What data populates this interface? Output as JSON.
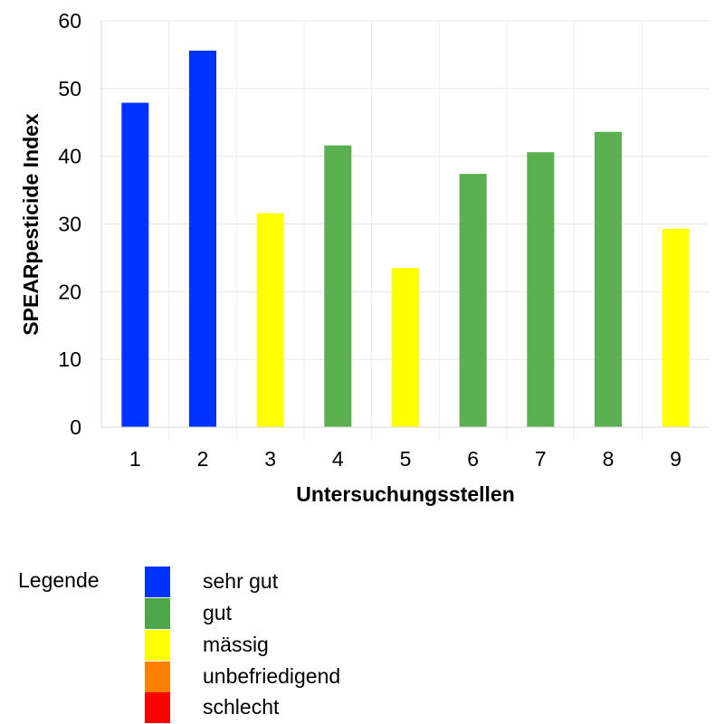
{
  "chart_data": {
    "type": "bar",
    "categories": [
      "1",
      "2",
      "3",
      "4",
      "5",
      "6",
      "7",
      "8",
      "9"
    ],
    "values": [
      47.9,
      55.6,
      31.6,
      41.6,
      23.5,
      37.4,
      40.6,
      43.6,
      29.3
    ],
    "bar_classes": [
      "sehr gut",
      "sehr gut",
      "mässig",
      "gut",
      "mässig",
      "gut",
      "gut",
      "gut",
      "mässig"
    ],
    "title": "",
    "xlabel": "Untersuchungsstellen",
    "ylabel": "SPEARpesticide Index",
    "ylim": [
      0,
      60
    ],
    "yticks": [
      0,
      10,
      20,
      30,
      40,
      50,
      60
    ],
    "grid": true,
    "legend_position": "bottom-left"
  },
  "legend": {
    "title": "Legende",
    "items": [
      {
        "label": "sehr gut",
        "color": "#0033ff"
      },
      {
        "label": "gut",
        "color": "#4ea64a"
      },
      {
        "label": "mässig",
        "color": "#ffff00"
      },
      {
        "label": "unbefriedigend",
        "color": "#ff8000"
      },
      {
        "label": "schlecht",
        "color": "#ff0000"
      }
    ]
  },
  "bar_colors": {
    "sehr gut": "#0033ff",
    "gut": "#5ab04e",
    "mässig": "#ffff00"
  }
}
